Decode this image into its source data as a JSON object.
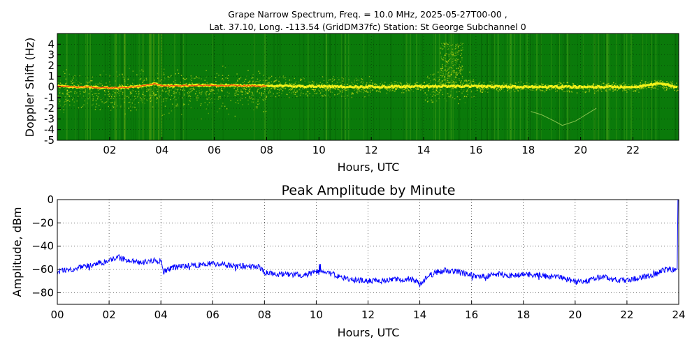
{
  "figure": {
    "title_line1": "Grape Narrow Spectrum, Freq. = 10.0 MHz, 2025-05-27T00-00 ,",
    "title_line2": "Lat.  37.10, Long. -113.54 (GridDM37fc) Station: St George Subchannel 0"
  },
  "colors": {
    "spectrum_background": "#0a7a0a",
    "spectrum_dark": "#066006",
    "spectrum_yellow": "#f2f21a",
    "spectrum_orange": "#ff8c00",
    "spectrum_red": "#e82020",
    "amplitude_line": "#0000ff",
    "grid": "#000000"
  },
  "chart_data": [
    {
      "type": "heatmap",
      "title": "",
      "xlabel": "Hours, UTC",
      "ylabel": "Doppler Shift (Hz)",
      "xlim": [
        0,
        23.75
      ],
      "ylim": [
        -5,
        5
      ],
      "xticks": [
        2,
        4,
        6,
        8,
        10,
        12,
        14,
        16,
        18,
        20,
        22
      ],
      "xtick_labels": [
        "02",
        "04",
        "06",
        "08",
        "10",
        "12",
        "14",
        "16",
        "18",
        "20",
        "22"
      ],
      "yticks": [
        -5,
        -4,
        -3,
        -2,
        -1,
        0,
        1,
        2,
        3,
        4
      ],
      "ytick_labels": [
        "-5",
        "-4",
        "-3",
        "-2",
        "-1",
        "0",
        "1",
        "2",
        "3",
        "4"
      ],
      "grid": true,
      "carrier_doppler_hz": [
        [
          0,
          0.05
        ],
        [
          1,
          0.0
        ],
        [
          2,
          -0.1
        ],
        [
          3,
          0.0
        ],
        [
          3.7,
          0.3
        ],
        [
          4,
          0.1
        ],
        [
          6,
          0.15
        ],
        [
          8,
          0.1
        ],
        [
          10,
          0.05
        ],
        [
          12,
          0.0
        ],
        [
          14,
          0.05
        ],
        [
          16,
          0.05
        ],
        [
          18,
          0.0
        ],
        [
          20,
          0.0
        ],
        [
          22,
          0.0
        ],
        [
          23,
          0.3
        ],
        [
          23.75,
          0.0
        ]
      ],
      "secondary_trace_hz": [
        [
          18.1,
          -2.3
        ],
        [
          18.5,
          -2.6
        ],
        [
          19.0,
          -3.2
        ],
        [
          19.3,
          -3.6
        ],
        [
          19.8,
          -3.2
        ],
        [
          20.2,
          -2.6
        ],
        [
          20.6,
          -2.0
        ]
      ]
    },
    {
      "type": "line",
      "title": "Peak Amplitude by Minute",
      "xlabel": "Hours, UTC",
      "ylabel": "Amplitude, dBm",
      "xlim": [
        0,
        24
      ],
      "ylim": [
        -90,
        0
      ],
      "xticks": [
        0,
        2,
        4,
        6,
        8,
        10,
        12,
        14,
        16,
        18,
        20,
        22,
        24
      ],
      "xtick_labels": [
        "00",
        "02",
        "04",
        "06",
        "08",
        "10",
        "12",
        "14",
        "16",
        "18",
        "20",
        "22",
        "24"
      ],
      "yticks": [
        0,
        -20,
        -40,
        -60,
        -80
      ],
      "ytick_labels": [
        "0",
        "−20",
        "−40",
        "−60",
        "−80"
      ],
      "grid": true,
      "x": [
        0,
        0.5,
        1,
        1.5,
        2,
        2.3,
        2.8,
        3.3,
        3.8,
        4.0,
        4.1,
        4.5,
        5,
        5.5,
        6,
        6.5,
        7,
        7.5,
        7.8,
        8.0,
        8.5,
        9,
        9.5,
        10,
        10.5,
        11,
        11.5,
        12,
        12.5,
        13,
        13.5,
        13.8,
        14,
        14.3,
        14.7,
        15,
        15.5,
        16,
        16.5,
        17,
        17.5,
        18,
        18.5,
        19,
        19.5,
        20,
        20.5,
        21,
        21.5,
        22,
        22.5,
        23,
        23.5,
        23.9
      ],
      "values": [
        -62,
        -60,
        -58,
        -55,
        -53,
        -49,
        -53,
        -54,
        -52,
        -53,
        -62,
        -58,
        -57,
        -56,
        -55,
        -56,
        -57,
        -57,
        -58,
        -63,
        -64,
        -64,
        -65,
        -62,
        -63,
        -67,
        -69,
        -70,
        -70,
        -69,
        -68,
        -69,
        -73,
        -66,
        -62,
        -61,
        -62,
        -65,
        -66,
        -64,
        -65,
        -64,
        -65,
        -66,
        -67,
        -71,
        -70,
        -66,
        -69,
        -70,
        -67,
        -65,
        -60,
        -60
      ]
    }
  ]
}
